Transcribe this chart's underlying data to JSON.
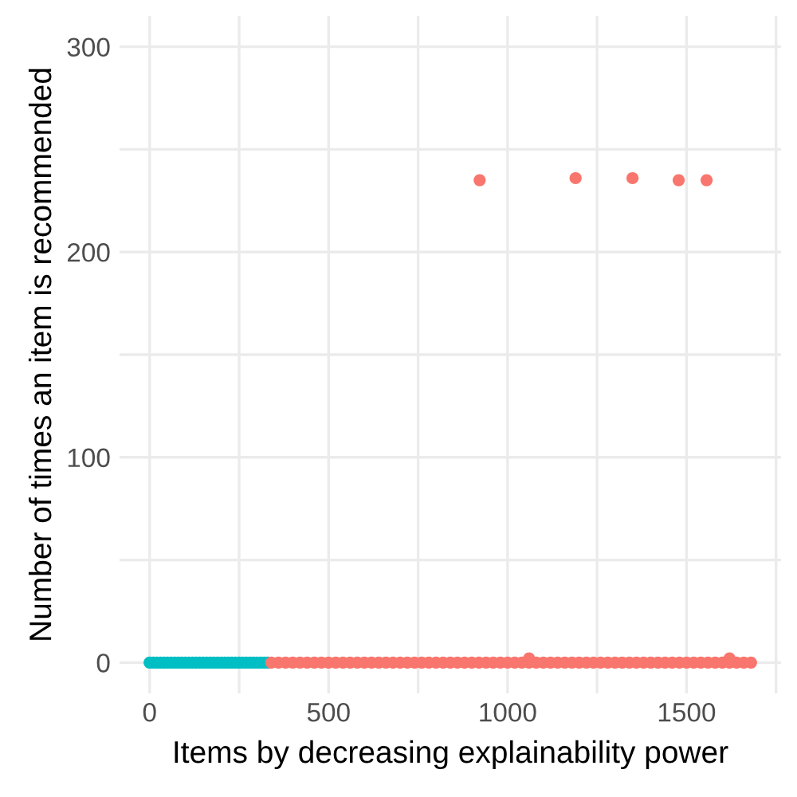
{
  "chart_data": {
    "type": "scatter",
    "xlabel": "Items by decreasing explainability power",
    "ylabel": "Number of times an item is recommended",
    "series": [
      {
        "color": "#00bfc4",
        "x": [
          0,
          10,
          20,
          30,
          40,
          50,
          60,
          70,
          80,
          90,
          100,
          110,
          120,
          130,
          140,
          150,
          160,
          170,
          180,
          190,
          200,
          210,
          220,
          230,
          240,
          250,
          260,
          270,
          280,
          290,
          300,
          310,
          320,
          330
        ],
        "values": [
          0,
          0,
          0,
          0,
          0,
          0,
          0,
          0,
          0,
          0,
          0,
          0,
          0,
          0,
          0,
          0,
          0,
          0,
          0,
          0,
          0,
          0,
          0,
          0,
          0,
          0,
          0,
          0,
          0,
          0,
          0,
          0,
          0,
          0
        ]
      },
      {
        "color": "#f8766d",
        "x": [
          340,
          360,
          380,
          400,
          420,
          440,
          460,
          480,
          500,
          520,
          540,
          560,
          580,
          600,
          620,
          640,
          660,
          680,
          700,
          720,
          740,
          760,
          780,
          800,
          820,
          840,
          860,
          880,
          900,
          920,
          940,
          960,
          980,
          1000,
          1020,
          1040,
          1060,
          1080,
          1100,
          1120,
          1140,
          1160,
          1180,
          1200,
          1220,
          1240,
          1260,
          1280,
          1300,
          1320,
          1340,
          1360,
          1380,
          1400,
          1420,
          1440,
          1460,
          1480,
          1500,
          1520,
          1540,
          1560,
          1580,
          1600,
          1620,
          1640,
          1660,
          1680,
          1060,
          1620,
          922,
          1190,
          1349,
          1478,
          1556
        ],
        "values": [
          0,
          0,
          0,
          0,
          0,
          0,
          0,
          0,
          0,
          0,
          0,
          0,
          0,
          0,
          0,
          0,
          0,
          0,
          0,
          0,
          0,
          0,
          0,
          0,
          0,
          0,
          0,
          0,
          0,
          0,
          0,
          0,
          0,
          0,
          0,
          0,
          0,
          0,
          0,
          0,
          0,
          0,
          0,
          0,
          0,
          0,
          0,
          0,
          0,
          0,
          0,
          0,
          0,
          0,
          0,
          0,
          0,
          0,
          0,
          0,
          0,
          0,
          0,
          0,
          0,
          0,
          0,
          0,
          2,
          2,
          235,
          236,
          236,
          235,
          235
        ]
      }
    ],
    "xlim": [
      -84,
      1764
    ],
    "xticks": [
      0,
      {
        "value": 250,
        "label": null
      },
      500,
      {
        "value": 750,
        "label": null
      },
      1000,
      {
        "value": 1250,
        "label": null
      },
      1500,
      {
        "value": 1750,
        "label": null
      }
    ],
    "ylim": [
      -15,
      315
    ],
    "yticks": [
      0,
      {
        "value": 50,
        "label": null
      },
      100,
      {
        "value": 150,
        "label": null
      },
      200,
      {
        "value": 250,
        "label": null
      },
      300
    ],
    "grid": true,
    "marker": "circle"
  }
}
